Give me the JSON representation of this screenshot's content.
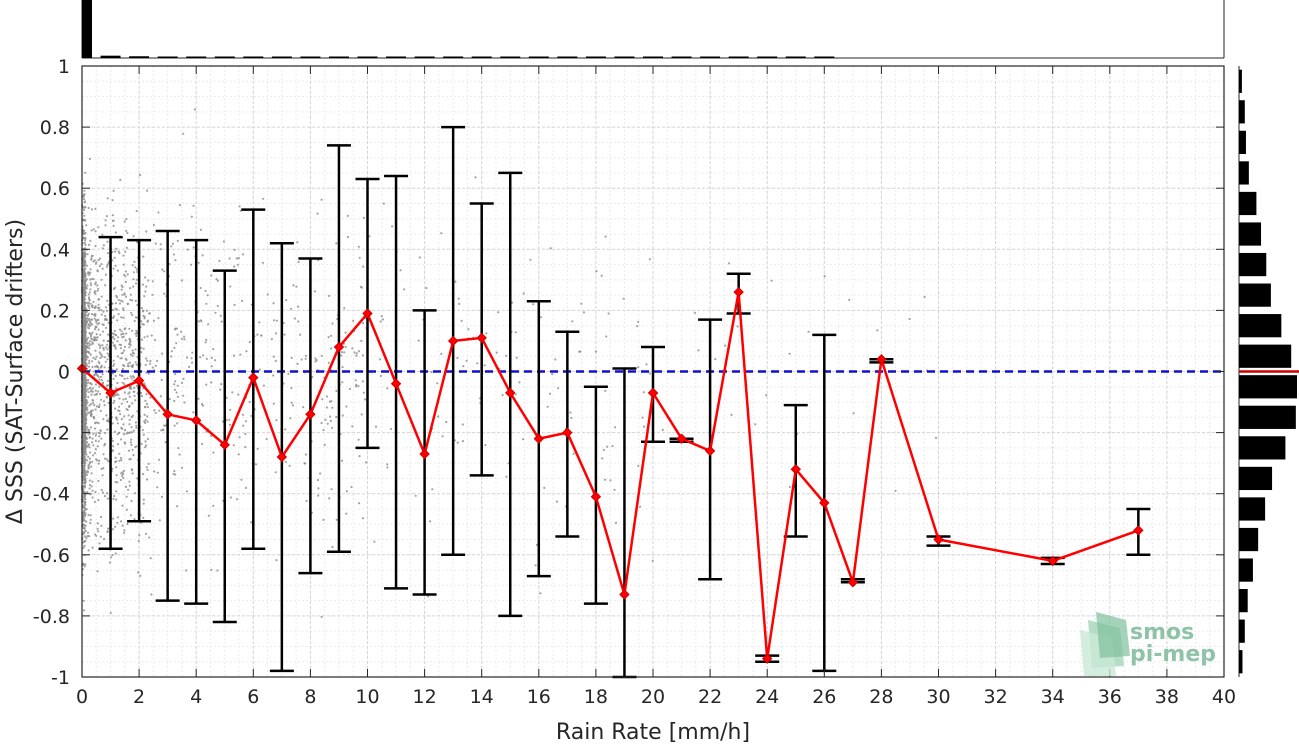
{
  "chart_data": {
    "type": "scatter",
    "title": "",
    "xlabel": "Rain Rate [mm/h]",
    "ylabel": "Δ SSS (SAT-Surface drifters)",
    "xlim": [
      0,
      40
    ],
    "ylim": [
      -1,
      1
    ],
    "x_ticks": [
      "0",
      "2",
      "4",
      "6",
      "8",
      "10",
      "12",
      "14",
      "16",
      "18",
      "20",
      "22",
      "24",
      "26",
      "28",
      "30",
      "32",
      "34",
      "36",
      "38",
      "40"
    ],
    "y_ticks": [
      "1",
      "0.8",
      "0.6",
      "0.4",
      "0.2",
      "0",
      "-0.2",
      "-0.4",
      "-0.6",
      "-0.8",
      "-1"
    ],
    "grid": true,
    "reference_line": {
      "y": 0,
      "style": "dashed",
      "color": "#1010d0"
    },
    "mean_series": {
      "color": "#ff0000",
      "points": [
        {
          "x": 0,
          "y": 0.01,
          "low": null,
          "high": null
        },
        {
          "x": 1,
          "y": -0.07,
          "low": -0.58,
          "high": 0.44
        },
        {
          "x": 2,
          "y": -0.03,
          "low": -0.49,
          "high": 0.43
        },
        {
          "x": 3,
          "y": -0.14,
          "low": -0.75,
          "high": 0.46
        },
        {
          "x": 4,
          "y": -0.16,
          "low": -0.76,
          "high": 0.43
        },
        {
          "x": 5,
          "y": -0.24,
          "low": -0.82,
          "high": 0.33
        },
        {
          "x": 6,
          "y": -0.02,
          "low": -0.58,
          "high": 0.53
        },
        {
          "x": 7,
          "y": -0.28,
          "low": -0.98,
          "high": 0.42
        },
        {
          "x": 8,
          "y": -0.14,
          "low": -0.66,
          "high": 0.37
        },
        {
          "x": 9,
          "y": 0.08,
          "low": -0.59,
          "high": 0.74
        },
        {
          "x": 10,
          "y": 0.19,
          "low": -0.25,
          "high": 0.63
        },
        {
          "x": 11,
          "y": -0.04,
          "low": -0.71,
          "high": 0.64
        },
        {
          "x": 12,
          "y": -0.27,
          "low": -0.73,
          "high": 0.2
        },
        {
          "x": 13,
          "y": 0.1,
          "low": -0.6,
          "high": 0.8
        },
        {
          "x": 14,
          "y": 0.11,
          "low": -0.34,
          "high": 0.55
        },
        {
          "x": 15,
          "y": -0.07,
          "low": -0.8,
          "high": 0.65
        },
        {
          "x": 16,
          "y": -0.22,
          "low": -0.67,
          "high": 0.23
        },
        {
          "x": 17,
          "y": -0.2,
          "low": -0.54,
          "high": 0.13
        },
        {
          "x": 18,
          "y": -0.41,
          "low": -0.76,
          "high": -0.05
        },
        {
          "x": 19,
          "y": -0.73,
          "low": -1.0,
          "high": 0.01
        },
        {
          "x": 20,
          "y": -0.07,
          "low": -0.23,
          "high": 0.08
        },
        {
          "x": 21,
          "y": -0.22,
          "low": -0.23,
          "high": -0.22
        },
        {
          "x": 22,
          "y": -0.26,
          "low": -0.68,
          "high": 0.17
        },
        {
          "x": 23,
          "y": 0.26,
          "low": 0.19,
          "high": 0.32
        },
        {
          "x": 24,
          "y": -0.94,
          "low": -0.95,
          "high": -0.93
        },
        {
          "x": 25,
          "y": -0.32,
          "low": -0.54,
          "high": -0.11
        },
        {
          "x": 26,
          "y": -0.43,
          "low": -0.98,
          "high": 0.12
        },
        {
          "x": 27,
          "y": -0.69,
          "low": -0.69,
          "high": -0.68
        },
        {
          "x": 28,
          "y": 0.04,
          "low": 0.03,
          "high": 0.04
        },
        {
          "x": 30,
          "y": -0.55,
          "low": -0.57,
          "high": -0.54
        },
        {
          "x": 34,
          "y": -0.62,
          "low": -0.63,
          "high": -0.61
        },
        {
          "x": 37,
          "y": -0.52,
          "low": -0.6,
          "high": -0.45
        }
      ]
    },
    "scatter_points": {
      "color": "#8c8c8c",
      "description_only": false
    },
    "top_histogram": {
      "x_bins": [
        0,
        1,
        2,
        3,
        4,
        5,
        6,
        7,
        8,
        9,
        10,
        11,
        12,
        13,
        14,
        15,
        16,
        17,
        18,
        19,
        20,
        21,
        22,
        23,
        24,
        25,
        26
      ],
      "relative_counts": [
        1.0,
        0.04,
        0.03,
        0.02,
        0.02,
        0.015,
        0.015,
        0.012,
        0.01,
        0.01,
        0.01,
        0.008,
        0.008,
        0.006,
        0.006,
        0.005,
        0.005,
        0.004,
        0.004,
        0.004,
        0.004,
        0.003,
        0.003,
        0.003,
        0.003,
        0.003,
        0.003
      ]
    },
    "right_histogram": {
      "y_bins": [
        0.95,
        0.85,
        0.75,
        0.65,
        0.55,
        0.45,
        0.35,
        0.25,
        0.15,
        0.05,
        -0.05,
        -0.15,
        -0.25,
        -0.35,
        -0.45,
        -0.55,
        -0.65,
        -0.75,
        -0.85,
        -0.95
      ],
      "relative_counts": [
        0.05,
        0.1,
        0.12,
        0.17,
        0.3,
        0.38,
        0.47,
        0.55,
        0.73,
        0.9,
        1.0,
        0.98,
        0.8,
        0.57,
        0.45,
        0.33,
        0.24,
        0.15,
        0.1,
        0.06
      ],
      "median_line": {
        "y": 0,
        "color": "#cc0000"
      }
    }
  },
  "logo": {
    "line1": "smos",
    "line2": "pi-mep"
  }
}
